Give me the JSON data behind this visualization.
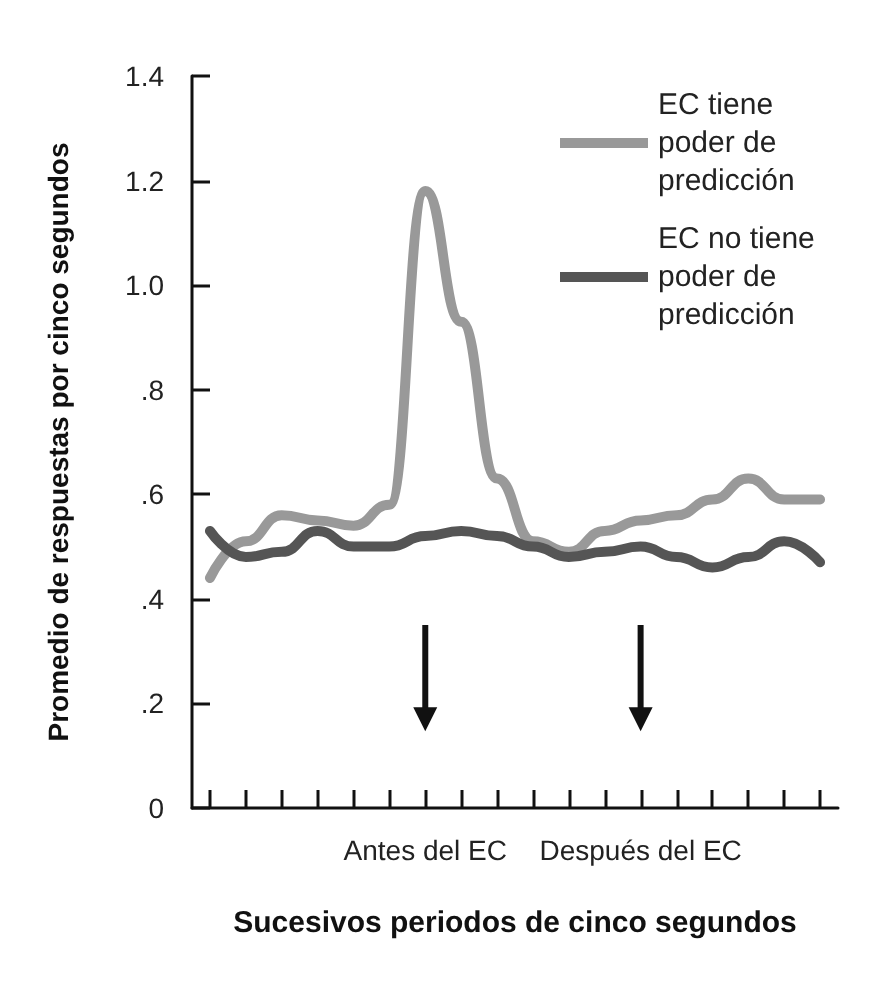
{
  "chart_data": {
    "type": "line",
    "xlabel": "Sucesivos periodos de cinco segundos",
    "ylabel": "Promedio de respuestas por cinco segundos",
    "categories": [
      null,
      null,
      null,
      null,
      null,
      null,
      "Antes del EC",
      null,
      null,
      null,
      null,
      null,
      "Después del EC",
      null,
      null,
      null,
      null,
      null
    ],
    "ylim": [
      0,
      1.4
    ],
    "yticks": [
      0,
      {
        "value": 0.2,
        "label": ".2"
      },
      {
        "value": 0.4,
        "label": ".4"
      },
      {
        "value": 0.6,
        "label": ".6"
      },
      {
        "value": 0.8,
        "label": ".8"
      },
      {
        "value": 1.0,
        "label": "1.0"
      },
      {
        "value": 1.2,
        "label": "1.2"
      },
      {
        "value": 1.4,
        "label": "1.4"
      }
    ],
    "series": [
      {
        "name": "EC tiene poder de predicción",
        "color": "#999999",
        "values": [
          0.44,
          0.51,
          0.56,
          0.55,
          0.54,
          0.58,
          1.18,
          0.93,
          0.63,
          0.51,
          0.49,
          0.53,
          0.55,
          0.56,
          0.59,
          0.63,
          0.59,
          0.59
        ]
      },
      {
        "name": "EC no tiene poder de predicción",
        "color": "#555555",
        "values": [
          0.53,
          0.48,
          0.49,
          0.53,
          0.5,
          0.5,
          0.52,
          0.53,
          0.52,
          0.5,
          0.48,
          0.49,
          0.5,
          0.48,
          0.46,
          0.48,
          0.51,
          0.47
        ]
      }
    ],
    "legend": "top right",
    "grid": false,
    "marker": "none",
    "line_style": "solid"
  }
}
